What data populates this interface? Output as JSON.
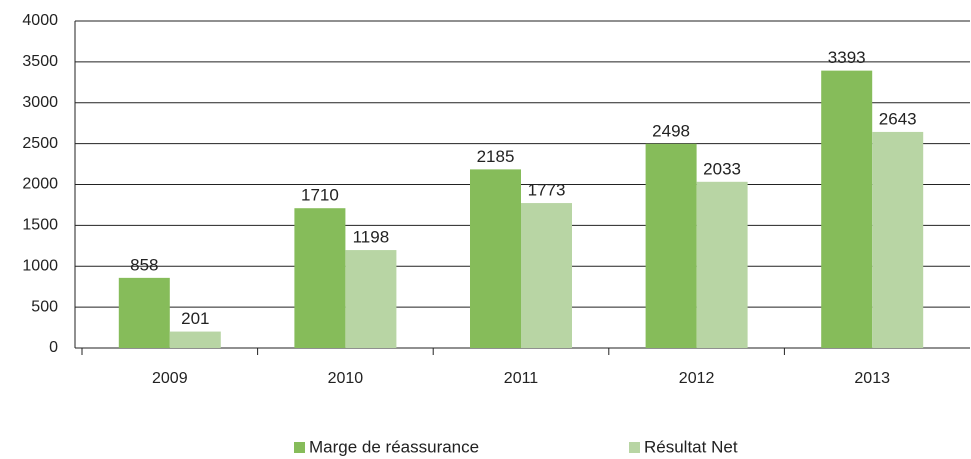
{
  "chart_data": {
    "type": "bar",
    "categories": [
      "2009",
      "2010",
      "2011",
      "2012",
      "2013"
    ],
    "series": [
      {
        "name": "Marge de réassurance",
        "color": "#86bc5a",
        "values": [
          858,
          1710,
          2185,
          2498,
          3393
        ]
      },
      {
        "name": "Résultat Net",
        "color": "#b8d5a4",
        "values": [
          201,
          1198,
          1773,
          2033,
          2643
        ]
      }
    ],
    "ylim": [
      0,
      4000
    ],
    "yticks": [
      0,
      500,
      1000,
      1500,
      2000,
      2500,
      3000,
      3500,
      4000
    ],
    "grid": true,
    "legend": "bottom"
  }
}
